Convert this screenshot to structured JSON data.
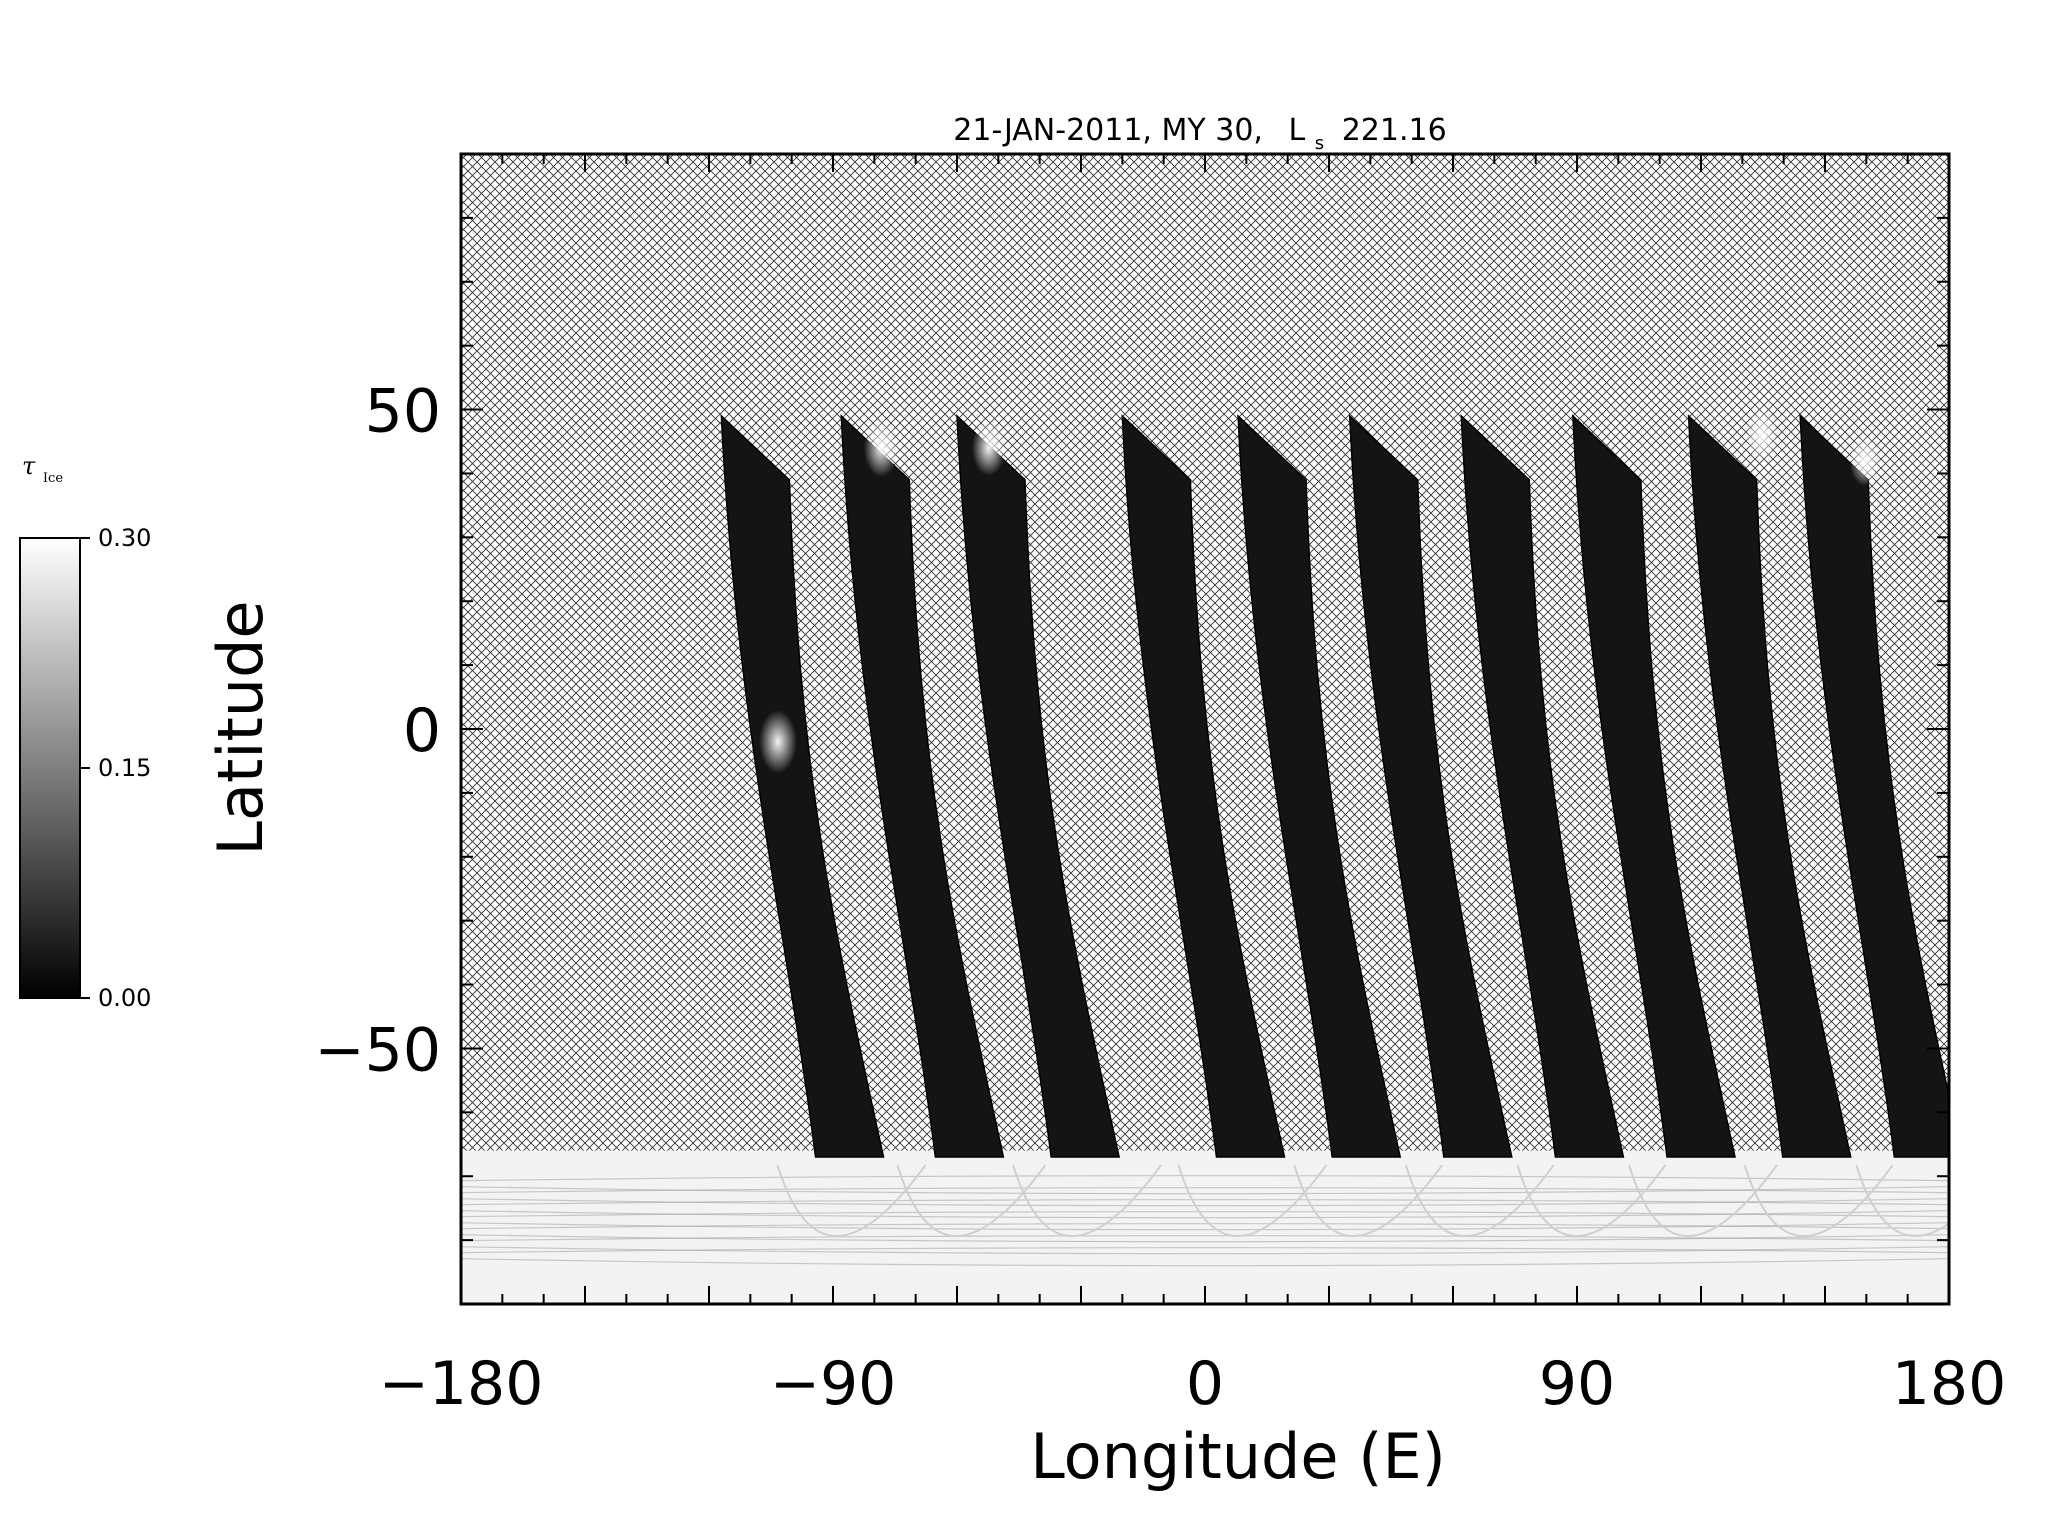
{
  "chart_data": {
    "type": "heatmap",
    "title": {
      "date": "21-JAN-2011, MY 30,",
      "ls_symbol": "L",
      "ls_subscript": "s",
      "ls_value": "221.16"
    },
    "xlabel": "Longitude (E)",
    "ylabel": "Latitude",
    "xlim": [
      -180,
      180
    ],
    "ylim": [
      -90,
      90
    ],
    "x_ticks": [
      -180,
      -90,
      0,
      90,
      180
    ],
    "x_tick_labels": [
      "−180",
      "−90",
      "0",
      "90",
      "180"
    ],
    "y_ticks": [
      -50,
      0,
      50
    ],
    "y_tick_labels": [
      "−50",
      "0",
      "50"
    ],
    "no_data_pattern": "crosshatch",
    "colorbar": {
      "symbol": "τ",
      "subscript": "Ice",
      "min": 0.0,
      "max": 0.3,
      "ticks": [
        "0.00",
        "0.15",
        "0.30"
      ],
      "colormap": "grayscale"
    },
    "swaths": [
      {
        "lon_top": -117,
        "lon_bottom": -101
      },
      {
        "lon_top": -88,
        "lon_bottom": -72
      },
      {
        "lon_top": -60,
        "lon_bottom": -44
      },
      {
        "lon_top": -20,
        "lon_bottom": -4
      },
      {
        "lon_top": 8,
        "lon_bottom": 24
      },
      {
        "lon_top": 35,
        "lon_bottom": 51
      },
      {
        "lon_top": 62,
        "lon_bottom": 78
      },
      {
        "lon_top": 89,
        "lon_bottom": 105
      },
      {
        "lon_top": 117,
        "lon_bottom": 133
      },
      {
        "lon_top": 144,
        "lon_bottom": 160
      }
    ],
    "swath_top_lat": 49,
    "swath_bottom_lat": -67,
    "south_polar_cap_from_lat": -66,
    "bright_features": [
      {
        "lon": -113,
        "lat": -2,
        "value": 0.26
      },
      {
        "lon": -88,
        "lat": 44,
        "value": 0.22
      },
      {
        "lon": -62,
        "lat": 44,
        "value": 0.2
      },
      {
        "lon": 125,
        "lat": 46,
        "value": 0.18
      },
      {
        "lon": 150,
        "lat": 42,
        "value": 0.16
      }
    ]
  }
}
